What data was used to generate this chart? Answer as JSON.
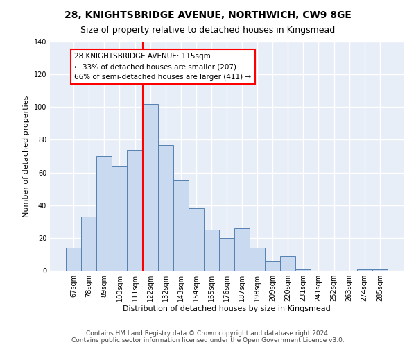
{
  "title": "28, KNIGHTSBRIDGE AVENUE, NORTHWICH, CW9 8GE",
  "subtitle": "Size of property relative to detached houses in Kingsmead",
  "xlabel": "Distribution of detached houses by size in Kingsmead",
  "ylabel": "Number of detached properties",
  "bar_labels": [
    "67sqm",
    "78sqm",
    "89sqm",
    "100sqm",
    "111sqm",
    "122sqm",
    "132sqm",
    "143sqm",
    "154sqm",
    "165sqm",
    "176sqm",
    "187sqm",
    "198sqm",
    "209sqm",
    "220sqm",
    "231sqm",
    "241sqm",
    "252sqm",
    "263sqm",
    "274sqm",
    "285sqm"
  ],
  "bar_values": [
    14,
    33,
    70,
    64,
    74,
    102,
    77,
    55,
    38,
    25,
    20,
    26,
    14,
    6,
    9,
    1,
    0,
    0,
    0,
    1,
    1
  ],
  "bar_color": "#c9d9f0",
  "bar_edgecolor": "#5580b0",
  "red_line_index": 4.5,
  "annotation_lines": [
    "28 KNIGHTSBRIDGE AVENUE: 115sqm",
    "← 33% of detached houses are smaller (207)",
    "66% of semi-detached houses are larger (411) →"
  ],
  "ylim": [
    0,
    140
  ],
  "yticks": [
    0,
    20,
    40,
    60,
    80,
    100,
    120,
    140
  ],
  "footer_line1": "Contains HM Land Registry data © Crown copyright and database right 2024.",
  "footer_line2": "Contains public sector information licensed under the Open Government Licence v3.0.",
  "background_color": "#e8eef8",
  "grid_color": "#ffffff",
  "fig_background": "#ffffff",
  "title_fontsize": 10,
  "subtitle_fontsize": 9,
  "axis_label_fontsize": 8,
  "tick_fontsize": 7,
  "annotation_fontsize": 7.5,
  "footer_fontsize": 6.5
}
